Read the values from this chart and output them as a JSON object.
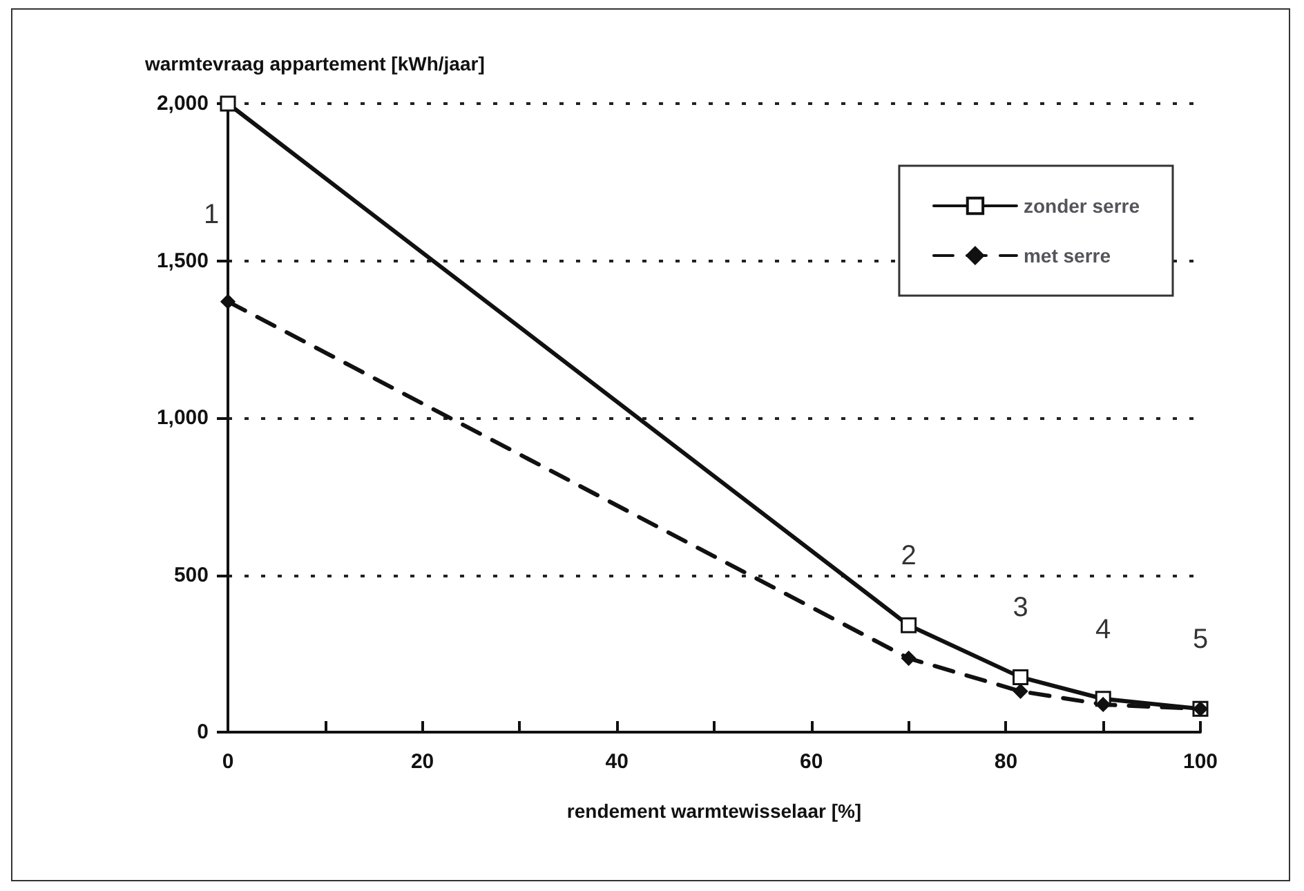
{
  "chart_data": {
    "type": "line",
    "ylabel": "warmtevraag appartement [kWh/jaar]",
    "xlabel": "rendement warmtewisselaar [%]",
    "x": [
      0,
      70,
      81.5,
      90,
      100
    ],
    "series": [
      {
        "name": "zonder serre",
        "color": "#111111",
        "values": [
          2000,
          340,
          175,
          106,
          74
        ],
        "marker": "square",
        "line_style": "solid"
      },
      {
        "name": "met serre",
        "color": "#111111",
        "values": [
          1370,
          235,
          130,
          88,
          74
        ],
        "marker": "diamond",
        "line_style": "dashed"
      }
    ],
    "annotations": [
      {
        "text": "1",
        "x": 0,
        "y": 1370
      },
      {
        "text": "2",
        "x": 70,
        "y": 340
      },
      {
        "text": "3",
        "x": 81.5,
        "y": 175
      },
      {
        "text": "4",
        "x": 90,
        "y": 106
      },
      {
        "text": "5",
        "x": 100,
        "y": 74
      }
    ],
    "xlim": [
      0,
      100
    ],
    "xticks": [
      0,
      {
        "value": 10,
        "label": null
      },
      20,
      {
        "value": 30,
        "label": null
      },
      40,
      {
        "value": 50,
        "label": null
      },
      60,
      {
        "value": 70,
        "label": null
      },
      80,
      {
        "value": 90,
        "label": null
      },
      100
    ],
    "ylim": [
      0,
      2000
    ],
    "yticks": [
      0,
      500,
      {
        "value": 1000,
        "label": "1,000"
      },
      {
        "value": 1500,
        "label": "1,500"
      },
      {
        "value": 2000,
        "label": "2,000"
      }
    ],
    "grid": "y",
    "legend": "top right"
  }
}
